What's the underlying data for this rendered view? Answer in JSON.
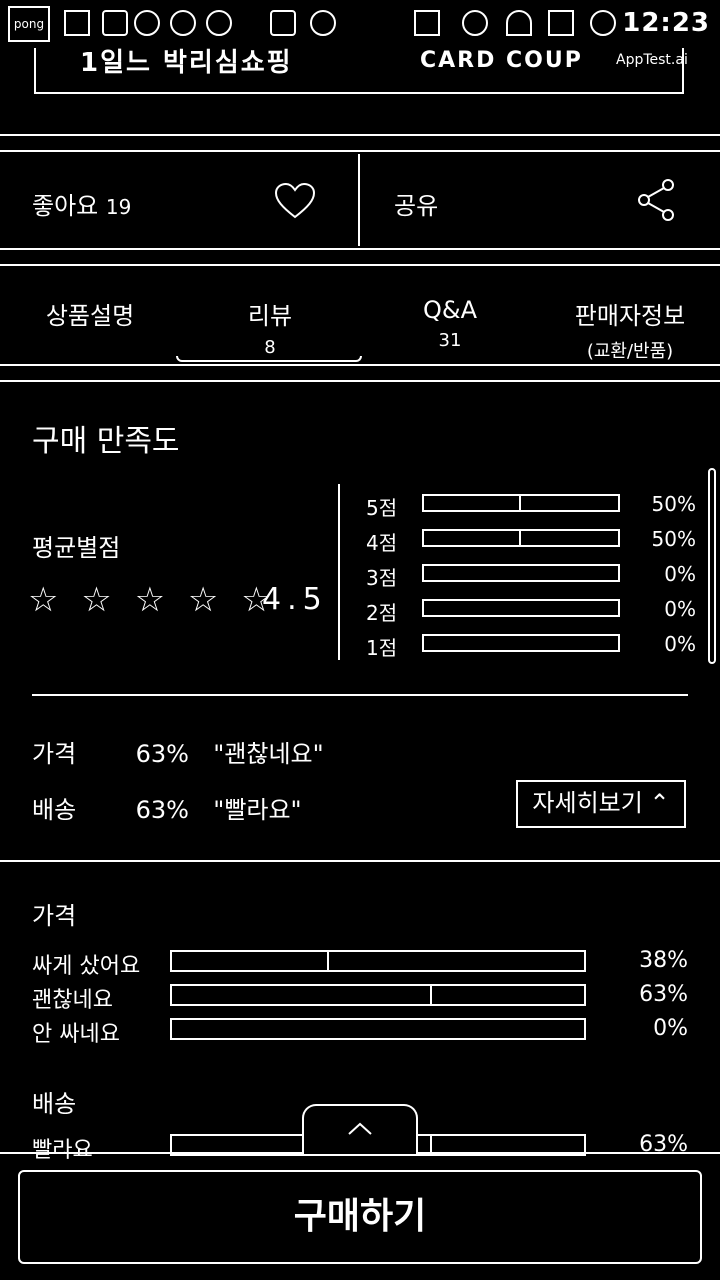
{
  "status_bar": {
    "app_logo": "pong",
    "time": "12:23",
    "icons_left": [
      "gallery-icon",
      "calendar-icon",
      "play-icon",
      "settings-icon",
      "add-icon",
      "chart-icon",
      "instagram-icon"
    ],
    "icons_right": [
      "cast-icon",
      "minus-icon",
      "wifi-icon",
      "signal-icon",
      "battery-icon"
    ]
  },
  "banner": {
    "left_text": "1일느 박리심쇼핑",
    "right_text": "CARD COUP",
    "apptest": "AppTest.ai"
  },
  "actions": {
    "like_label": "좋아요",
    "like_count": "19",
    "share_label": "공유"
  },
  "tabs": [
    {
      "label": "상품설명",
      "sub": ""
    },
    {
      "label": "리뷰",
      "sub": "8"
    },
    {
      "label": "Q&A",
      "sub": "31"
    },
    {
      "label": "판매자정보",
      "sub": "(교환/반품)"
    }
  ],
  "satisfaction": {
    "title": "구매 만족도",
    "average_label": "평균별점",
    "stars": "☆ ☆ ☆ ☆ ☆",
    "average_score": "4.5",
    "ratings": [
      {
        "label": "5점",
        "value": 0.5,
        "pct": "50%"
      },
      {
        "label": "4점",
        "value": 0.5,
        "pct": "50%"
      },
      {
        "label": "3점",
        "value": 0,
        "pct": "0%"
      },
      {
        "label": "2점",
        "value": 0,
        "pct": "0%"
      },
      {
        "label": "1점",
        "value": 0,
        "pct": "0%"
      }
    ]
  },
  "summary": {
    "price_label": "가격",
    "price_pct": "63%",
    "price_comment": "\"괜찮네요\"",
    "delivery_label": "배송",
    "delivery_pct": "63%",
    "delivery_comment": "\"빨라요\"",
    "detail_button": "자세히보기 ⌃"
  },
  "price_breakdown": {
    "title": "가격",
    "rows": [
      {
        "label": "싸게 샀어요",
        "value": 0.38,
        "pct": "38%"
      },
      {
        "label": "괜찮네요",
        "value": 0.63,
        "pct": "63%"
      },
      {
        "label": "안 싸네요",
        "value": 0,
        "pct": "0%"
      }
    ]
  },
  "delivery_breakdown": {
    "title": "배송",
    "rows": [
      {
        "label": "빨라요",
        "value": 0.63,
        "pct": "63%"
      }
    ]
  },
  "collapse_icon": "chevron-up-icon",
  "buy_button": "구매하기"
}
